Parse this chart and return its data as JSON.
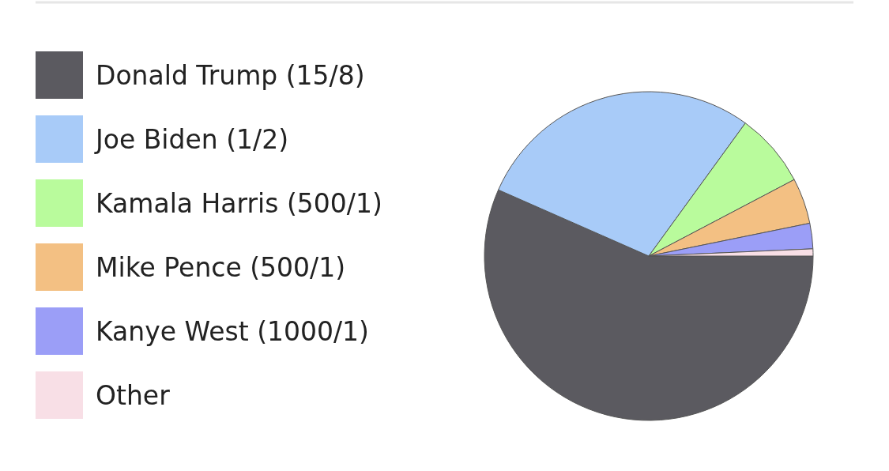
{
  "chart_data": {
    "type": "pie",
    "categories": [
      "Donald Trump (15/8)",
      "Joe Biden (1/2)",
      "Kamala Harris (500/1)",
      "Mike Pence (500/1)",
      "Kanye West (1000/1)",
      "Other"
    ],
    "values": [
      56.6,
      28.4,
      7.3,
      4.5,
      2.5,
      0.7
    ],
    "colors": [
      "#5b5a60",
      "#a8cbf8",
      "#b9fb9c",
      "#f3c083",
      "#9b9ef7",
      "#f8dfe6"
    ],
    "legend": "left"
  }
}
